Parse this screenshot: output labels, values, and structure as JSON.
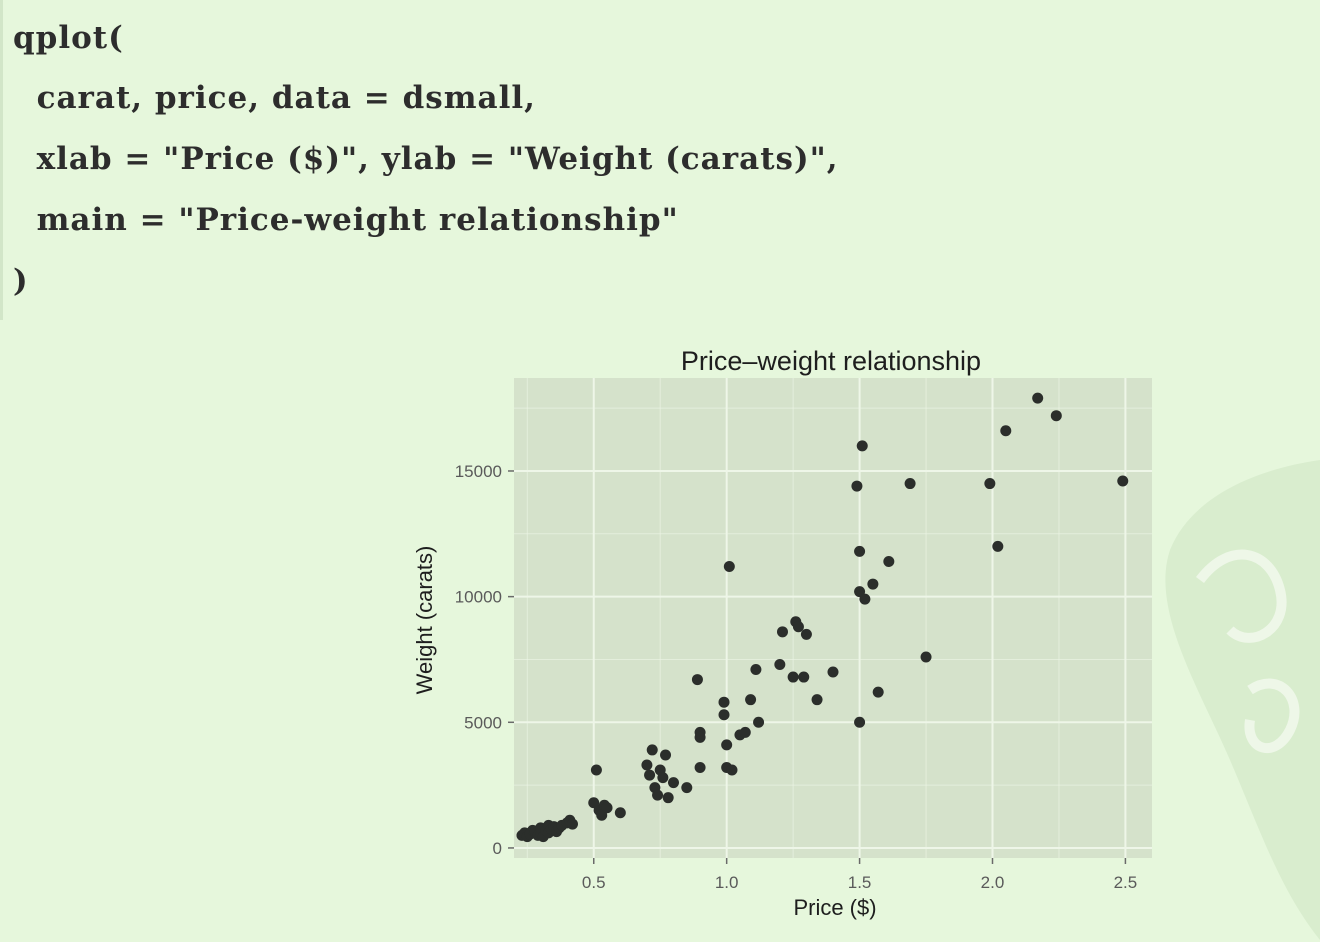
{
  "code": {
    "lines": [
      "qplot(",
      "  carat, price, data = dsmall,",
      "  xlab = \"Price ($)\", ylab = \"Weight (carats)\",",
      "  main = \"Price-weight relationship\"",
      ")"
    ]
  },
  "colors": {
    "page_background": "#e6f7dc",
    "panel_background": "#d5e2cb",
    "grid_line": "#eef6e8",
    "point": "#2b2e2b"
  },
  "chart_data": {
    "type": "scatter",
    "title": "Price–weight relationship",
    "xlabel": "Price ($)",
    "ylabel": "Weight (carats)",
    "xlim": [
      0.2,
      2.6
    ],
    "ylim": [
      -400,
      18700
    ],
    "x_ticks": [
      0.5,
      1.0,
      1.5,
      2.0,
      2.5
    ],
    "x_tick_labels": [
      "0.5",
      "1.0",
      "1.5",
      "2.0",
      "2.5"
    ],
    "y_ticks": [
      0,
      5000,
      10000,
      15000
    ],
    "y_tick_labels": [
      "0",
      "5000",
      "10000",
      "15000"
    ],
    "grid": true,
    "points": [
      [
        0.23,
        500
      ],
      [
        0.24,
        600
      ],
      [
        0.25,
        450
      ],
      [
        0.26,
        550
      ],
      [
        0.27,
        700
      ],
      [
        0.28,
        650
      ],
      [
        0.29,
        500
      ],
      [
        0.3,
        600
      ],
      [
        0.3,
        800
      ],
      [
        0.31,
        450
      ],
      [
        0.32,
        700
      ],
      [
        0.33,
        900
      ],
      [
        0.33,
        600
      ],
      [
        0.34,
        750
      ],
      [
        0.35,
        850
      ],
      [
        0.36,
        650
      ],
      [
        0.37,
        800
      ],
      [
        0.38,
        900
      ],
      [
        0.4,
        1000
      ],
      [
        0.41,
        1100
      ],
      [
        0.42,
        950
      ],
      [
        0.51,
        3100
      ],
      [
        0.5,
        1800
      ],
      [
        0.52,
        1500
      ],
      [
        0.53,
        1300
      ],
      [
        0.54,
        1700
      ],
      [
        0.55,
        1600
      ],
      [
        0.6,
        1400
      ],
      [
        0.7,
        3300
      ],
      [
        0.71,
        2900
      ],
      [
        0.72,
        3900
      ],
      [
        0.73,
        2400
      ],
      [
        0.74,
        2100
      ],
      [
        0.75,
        3100
      ],
      [
        0.76,
        2800
      ],
      [
        0.77,
        3700
      ],
      [
        0.78,
        2000
      ],
      [
        0.8,
        2600
      ],
      [
        0.85,
        2400
      ],
      [
        0.89,
        6700
      ],
      [
        0.9,
        4600
      ],
      [
        0.9,
        4400
      ],
      [
        0.9,
        3200
      ],
      [
        0.99,
        5800
      ],
      [
        0.99,
        5300
      ],
      [
        1.0,
        4100
      ],
      [
        1.0,
        3200
      ],
      [
        1.01,
        11200
      ],
      [
        1.02,
        3100
      ],
      [
        1.05,
        4500
      ],
      [
        1.07,
        4600
      ],
      [
        1.09,
        5900
      ],
      [
        1.11,
        7100
      ],
      [
        1.12,
        5000
      ],
      [
        1.2,
        7300
      ],
      [
        1.21,
        8600
      ],
      [
        1.25,
        6800
      ],
      [
        1.26,
        9000
      ],
      [
        1.27,
        8800
      ],
      [
        1.29,
        6800
      ],
      [
        1.3,
        8500
      ],
      [
        1.34,
        5900
      ],
      [
        1.4,
        7000
      ],
      [
        1.49,
        14400
      ],
      [
        1.5,
        11800
      ],
      [
        1.5,
        10200
      ],
      [
        1.5,
        5000
      ],
      [
        1.51,
        16000
      ],
      [
        1.52,
        9900
      ],
      [
        1.55,
        10500
      ],
      [
        1.57,
        6200
      ],
      [
        1.61,
        11400
      ],
      [
        1.69,
        14500
      ],
      [
        1.75,
        7600
      ],
      [
        1.99,
        14500
      ],
      [
        2.02,
        12000
      ],
      [
        2.05,
        16600
      ],
      [
        2.17,
        17900
      ],
      [
        2.24,
        17200
      ],
      [
        2.49,
        14600
      ]
    ]
  }
}
